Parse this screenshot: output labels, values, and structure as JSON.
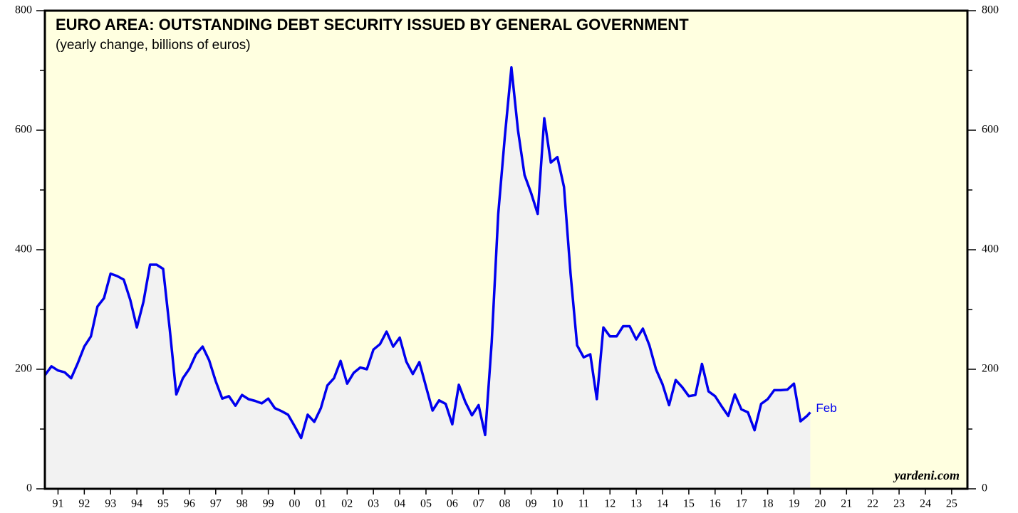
{
  "chart_data": {
    "type": "line",
    "title": "EURO AREA: OUTSTANDING DEBT SECURITY ISSUED BY GENERAL GOVERNMENT",
    "subtitle": "(yearly change, billions of euros)",
    "source": "yardeni.com",
    "annotation": "Feb",
    "color": "#0000ee",
    "fill": "#f2f2f2",
    "background": "#ffffe0",
    "x": [
      1991,
      1991.25,
      1991.5,
      1991.75,
      1992,
      1992.25,
      1992.5,
      1992.75,
      1993,
      1993.25,
      1993.5,
      1993.75,
      1994,
      1994.25,
      1994.5,
      1994.75,
      1995,
      1995.25,
      1995.5,
      1995.75,
      1996,
      1996.25,
      1996.5,
      1996.75,
      1997,
      1997.25,
      1997.5,
      1997.75,
      1998,
      1998.25,
      1998.5,
      1998.75,
      1999,
      1999.25,
      1999.5,
      1999.75,
      2000,
      2000.25,
      2000.5,
      2000.75,
      2001,
      2001.25,
      2001.5,
      2001.75,
      2002,
      2002.25,
      2002.5,
      2002.75,
      2003,
      2003.25,
      2003.5,
      2003.75,
      2004,
      2004.25,
      2004.5,
      2004.75,
      2005,
      2005.25,
      2005.5,
      2005.75,
      2006,
      2006.25,
      2006.5,
      2006.75,
      2007,
      2007.25,
      2007.5,
      2007.75,
      2008,
      2008.25,
      2008.5,
      2008.75,
      2009,
      2009.25,
      2009.5,
      2009.75,
      2010,
      2010.25,
      2010.5,
      2010.75,
      2011,
      2011.25,
      2011.5,
      2011.75,
      2012,
      2012.25,
      2012.5,
      2012.75,
      2013,
      2013.25,
      2013.5,
      2013.75,
      2014,
      2014.25,
      2014.5,
      2014.75,
      2015,
      2015.25,
      2015.5,
      2015.75,
      2016,
      2016.25,
      2016.5,
      2016.75,
      2017,
      2017.25,
      2017.5,
      2017.75,
      2018,
      2018.25,
      2018.5,
      2018.75,
      2019,
      2019.25,
      2019.5,
      2019.75,
      2020,
      2020.12
    ],
    "values": [
      190,
      205,
      198,
      195,
      185,
      210,
      238,
      255,
      305,
      319,
      360,
      356,
      350,
      316,
      270,
      313,
      375,
      375,
      368,
      268,
      158,
      185,
      201,
      225,
      238,
      215,
      180,
      151,
      155,
      139,
      157,
      150,
      147,
      143,
      151,
      135,
      130,
      124,
      105,
      85,
      124,
      112,
      135,
      173,
      185,
      214,
      176,
      194,
      203,
      200,
      233,
      242,
      263,
      238,
      253,
      213,
      192,
      212,
      171,
      131,
      148,
      142,
      108,
      174,
      145,
      123,
      140,
      90,
      245,
      460,
      590,
      705,
      600,
      525,
      495,
      460,
      620,
      546,
      555,
      505,
      360,
      240,
      220,
      225,
      150,
      270,
      255,
      255,
      272,
      272,
      250,
      268,
      240,
      200,
      175,
      140,
      182,
      170,
      155,
      157,
      209,
      163,
      155,
      138,
      122,
      158,
      133,
      128,
      98,
      142,
      150,
      165,
      165,
      166,
      176,
      113,
      122,
      128
    ],
    "xlim": [
      1991,
      2026.1
    ],
    "xticks": [
      {
        "value": 1991.5,
        "label": "91"
      },
      {
        "value": 1992.5,
        "label": "92"
      },
      {
        "value": 1993.5,
        "label": "93"
      },
      {
        "value": 1994.5,
        "label": "94"
      },
      {
        "value": 1995.5,
        "label": "95"
      },
      {
        "value": 1996.5,
        "label": "96"
      },
      {
        "value": 1997.5,
        "label": "97"
      },
      {
        "value": 1998.5,
        "label": "98"
      },
      {
        "value": 1999.5,
        "label": "99"
      },
      {
        "value": 2000.5,
        "label": "00"
      },
      {
        "value": 2001.5,
        "label": "01"
      },
      {
        "value": 2002.5,
        "label": "02"
      },
      {
        "value": 2003.5,
        "label": "03"
      },
      {
        "value": 2004.5,
        "label": "04"
      },
      {
        "value": 2005.5,
        "label": "05"
      },
      {
        "value": 2006.5,
        "label": "06"
      },
      {
        "value": 2007.5,
        "label": "07"
      },
      {
        "value": 2008.5,
        "label": "08"
      },
      {
        "value": 2009.5,
        "label": "09"
      },
      {
        "value": 2010.5,
        "label": "10"
      },
      {
        "value": 2011.5,
        "label": "11"
      },
      {
        "value": 2012.5,
        "label": "12"
      },
      {
        "value": 2013.5,
        "label": "13"
      },
      {
        "value": 2014.5,
        "label": "14"
      },
      {
        "value": 2015.5,
        "label": "15"
      },
      {
        "value": 2016.5,
        "label": "16"
      },
      {
        "value": 2017.5,
        "label": "17"
      },
      {
        "value": 2018.5,
        "label": "18"
      },
      {
        "value": 2019.5,
        "label": "19"
      },
      {
        "value": 2020.5,
        "label": "20"
      },
      {
        "value": 2021.5,
        "label": "21"
      },
      {
        "value": 2022.5,
        "label": "22"
      },
      {
        "value": 2023.5,
        "label": "23"
      },
      {
        "value": 2024.5,
        "label": "24"
      },
      {
        "value": 2025.5,
        "label": "25"
      }
    ],
    "ylim": [
      0,
      800
    ],
    "yticks": [
      0,
      200,
      400,
      600,
      800
    ],
    "yminorticks": [
      100,
      300,
      500,
      700
    ]
  }
}
